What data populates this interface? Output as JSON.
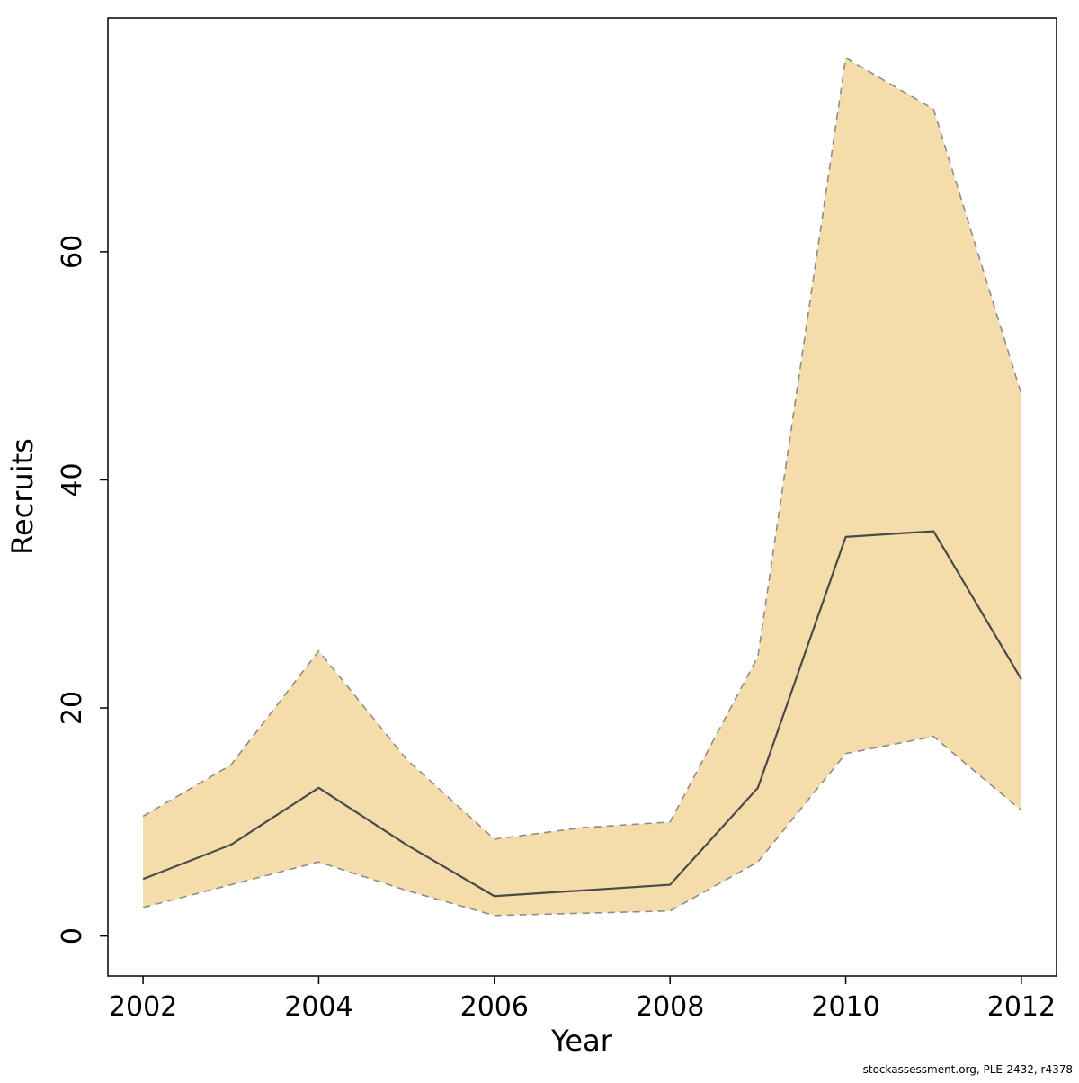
{
  "watermark": "stockassessment.org, PLE-2432, r4378",
  "chart_data": {
    "type": "line",
    "title": "",
    "xlabel": "Year",
    "ylabel": "Recruits",
    "x": [
      2002,
      2003,
      2004,
      2005,
      2006,
      2007,
      2008,
      2009,
      2010,
      2011,
      2012
    ],
    "series": [
      {
        "name": "estimate",
        "style": "solid",
        "values": [
          5,
          8,
          13,
          8,
          3.5,
          4,
          4.5,
          13,
          35,
          35.5,
          22.5
        ]
      },
      {
        "name": "upper-ci",
        "style": "dashed",
        "values": [
          10.5,
          15,
          25,
          15.5,
          8.5,
          9.5,
          10,
          24.5,
          77,
          72.5,
          47.5
        ]
      },
      {
        "name": "lower-ci",
        "style": "dashed",
        "values": [
          2.5,
          4.5,
          6.5,
          4,
          1.8,
          2,
          2.2,
          6.5,
          16,
          17.5,
          11
        ]
      }
    ],
    "xticks": [
      2002,
      2004,
      2006,
      2008,
      2010,
      2012
    ],
    "yticks": [
      0,
      20,
      40,
      60
    ],
    "xlim": [
      2001.6,
      2012.4
    ],
    "ylim": [
      -3.5,
      80.5
    ],
    "grid": false,
    "legend": "none",
    "colors": {
      "band_fill": "#f5dcab",
      "band_border": "#8c8c8c",
      "line": "#4a4a4a",
      "axis": "#000000",
      "background": "#ffffff"
    }
  }
}
